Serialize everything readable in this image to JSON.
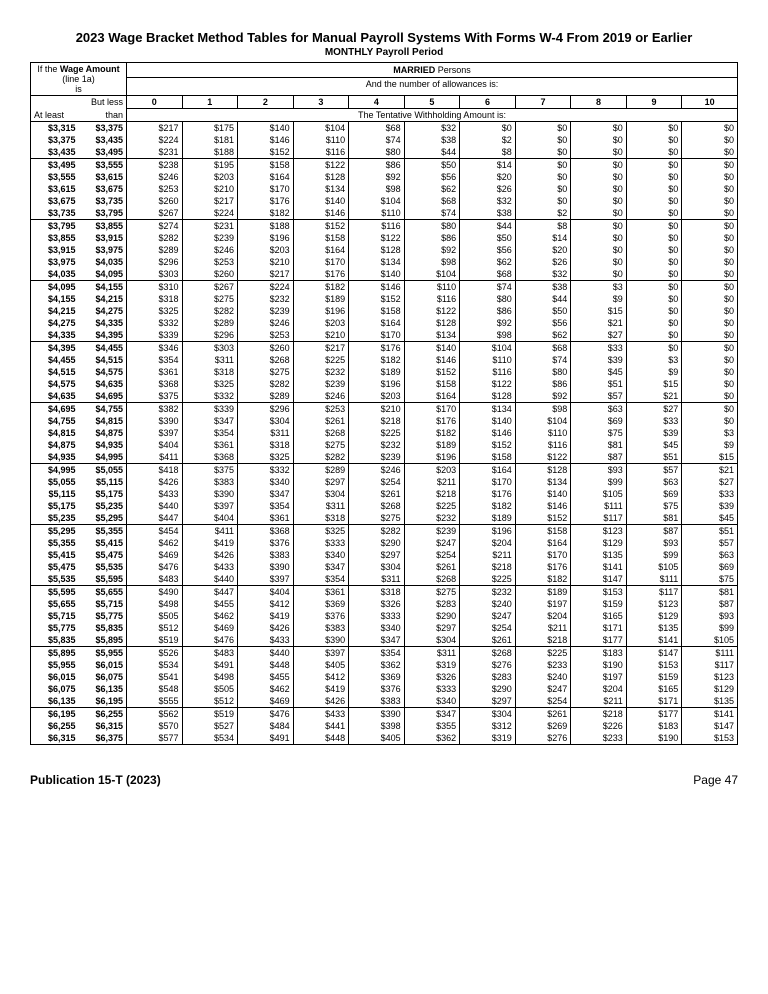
{
  "title": "2023 Wage Bracket Method Tables for Manual Payroll Systems With Forms W-4 From 2019 or Earlier",
  "subtitle": "MONTHLY Payroll Period",
  "wage_amount_label_l1": "If the Wage Amount",
  "wage_amount_label_l2": "(line 1a)",
  "wage_amount_label_l3": "is",
  "married_label": "MARRIED Persons",
  "allowances_label": "And the number of allowances is:",
  "at_least_label": "At least",
  "but_less_label_l1": "But less",
  "but_less_label_l2": "than",
  "tentative_label": "The Tentative Withholding Amount is:",
  "allowance_headers": [
    "0",
    "1",
    "2",
    "3",
    "4",
    "5",
    "6",
    "7",
    "8",
    "9",
    "10"
  ],
  "footer_left": "Publication 15-T (2023)",
  "footer_right": "Page 47",
  "groups": [
    [
      [
        "$3,315",
        "$3,375",
        "$217",
        "$175",
        "$140",
        "$104",
        "$68",
        "$32",
        "$0",
        "$0",
        "$0",
        "$0",
        "$0"
      ],
      [
        "$3,375",
        "$3,435",
        "$224",
        "$181",
        "$146",
        "$110",
        "$74",
        "$38",
        "$2",
        "$0",
        "$0",
        "$0",
        "$0"
      ],
      [
        "$3,435",
        "$3,495",
        "$231",
        "$188",
        "$152",
        "$116",
        "$80",
        "$44",
        "$8",
        "$0",
        "$0",
        "$0",
        "$0"
      ]
    ],
    [
      [
        "$3,495",
        "$3,555",
        "$238",
        "$195",
        "$158",
        "$122",
        "$86",
        "$50",
        "$14",
        "$0",
        "$0",
        "$0",
        "$0"
      ],
      [
        "$3,555",
        "$3,615",
        "$246",
        "$203",
        "$164",
        "$128",
        "$92",
        "$56",
        "$20",
        "$0",
        "$0",
        "$0",
        "$0"
      ],
      [
        "$3,615",
        "$3,675",
        "$253",
        "$210",
        "$170",
        "$134",
        "$98",
        "$62",
        "$26",
        "$0",
        "$0",
        "$0",
        "$0"
      ],
      [
        "$3,675",
        "$3,735",
        "$260",
        "$217",
        "$176",
        "$140",
        "$104",
        "$68",
        "$32",
        "$0",
        "$0",
        "$0",
        "$0"
      ],
      [
        "$3,735",
        "$3,795",
        "$267",
        "$224",
        "$182",
        "$146",
        "$110",
        "$74",
        "$38",
        "$2",
        "$0",
        "$0",
        "$0"
      ]
    ],
    [
      [
        "$3,795",
        "$3,855",
        "$274",
        "$231",
        "$188",
        "$152",
        "$116",
        "$80",
        "$44",
        "$8",
        "$0",
        "$0",
        "$0"
      ],
      [
        "$3,855",
        "$3,915",
        "$282",
        "$239",
        "$196",
        "$158",
        "$122",
        "$86",
        "$50",
        "$14",
        "$0",
        "$0",
        "$0"
      ],
      [
        "$3,915",
        "$3,975",
        "$289",
        "$246",
        "$203",
        "$164",
        "$128",
        "$92",
        "$56",
        "$20",
        "$0",
        "$0",
        "$0"
      ],
      [
        "$3,975",
        "$4,035",
        "$296",
        "$253",
        "$210",
        "$170",
        "$134",
        "$98",
        "$62",
        "$26",
        "$0",
        "$0",
        "$0"
      ],
      [
        "$4,035",
        "$4,095",
        "$303",
        "$260",
        "$217",
        "$176",
        "$140",
        "$104",
        "$68",
        "$32",
        "$0",
        "$0",
        "$0"
      ]
    ],
    [
      [
        "$4,095",
        "$4,155",
        "$310",
        "$267",
        "$224",
        "$182",
        "$146",
        "$110",
        "$74",
        "$38",
        "$3",
        "$0",
        "$0"
      ],
      [
        "$4,155",
        "$4,215",
        "$318",
        "$275",
        "$232",
        "$189",
        "$152",
        "$116",
        "$80",
        "$44",
        "$9",
        "$0",
        "$0"
      ],
      [
        "$4,215",
        "$4,275",
        "$325",
        "$282",
        "$239",
        "$196",
        "$158",
        "$122",
        "$86",
        "$50",
        "$15",
        "$0",
        "$0"
      ],
      [
        "$4,275",
        "$4,335",
        "$332",
        "$289",
        "$246",
        "$203",
        "$164",
        "$128",
        "$92",
        "$56",
        "$21",
        "$0",
        "$0"
      ],
      [
        "$4,335",
        "$4,395",
        "$339",
        "$296",
        "$253",
        "$210",
        "$170",
        "$134",
        "$98",
        "$62",
        "$27",
        "$0",
        "$0"
      ]
    ],
    [
      [
        "$4,395",
        "$4,455",
        "$346",
        "$303",
        "$260",
        "$217",
        "$176",
        "$140",
        "$104",
        "$68",
        "$33",
        "$0",
        "$0"
      ],
      [
        "$4,455",
        "$4,515",
        "$354",
        "$311",
        "$268",
        "$225",
        "$182",
        "$146",
        "$110",
        "$74",
        "$39",
        "$3",
        "$0"
      ],
      [
        "$4,515",
        "$4,575",
        "$361",
        "$318",
        "$275",
        "$232",
        "$189",
        "$152",
        "$116",
        "$80",
        "$45",
        "$9",
        "$0"
      ],
      [
        "$4,575",
        "$4,635",
        "$368",
        "$325",
        "$282",
        "$239",
        "$196",
        "$158",
        "$122",
        "$86",
        "$51",
        "$15",
        "$0"
      ],
      [
        "$4,635",
        "$4,695",
        "$375",
        "$332",
        "$289",
        "$246",
        "$203",
        "$164",
        "$128",
        "$92",
        "$57",
        "$21",
        "$0"
      ]
    ],
    [
      [
        "$4,695",
        "$4,755",
        "$382",
        "$339",
        "$296",
        "$253",
        "$210",
        "$170",
        "$134",
        "$98",
        "$63",
        "$27",
        "$0"
      ],
      [
        "$4,755",
        "$4,815",
        "$390",
        "$347",
        "$304",
        "$261",
        "$218",
        "$176",
        "$140",
        "$104",
        "$69",
        "$33",
        "$0"
      ],
      [
        "$4,815",
        "$4,875",
        "$397",
        "$354",
        "$311",
        "$268",
        "$225",
        "$182",
        "$146",
        "$110",
        "$75",
        "$39",
        "$3"
      ],
      [
        "$4,875",
        "$4,935",
        "$404",
        "$361",
        "$318",
        "$275",
        "$232",
        "$189",
        "$152",
        "$116",
        "$81",
        "$45",
        "$9"
      ],
      [
        "$4,935",
        "$4,995",
        "$411",
        "$368",
        "$325",
        "$282",
        "$239",
        "$196",
        "$158",
        "$122",
        "$87",
        "$51",
        "$15"
      ]
    ],
    [
      [
        "$4,995",
        "$5,055",
        "$418",
        "$375",
        "$332",
        "$289",
        "$246",
        "$203",
        "$164",
        "$128",
        "$93",
        "$57",
        "$21"
      ],
      [
        "$5,055",
        "$5,115",
        "$426",
        "$383",
        "$340",
        "$297",
        "$254",
        "$211",
        "$170",
        "$134",
        "$99",
        "$63",
        "$27"
      ],
      [
        "$5,115",
        "$5,175",
        "$433",
        "$390",
        "$347",
        "$304",
        "$261",
        "$218",
        "$176",
        "$140",
        "$105",
        "$69",
        "$33"
      ],
      [
        "$5,175",
        "$5,235",
        "$440",
        "$397",
        "$354",
        "$311",
        "$268",
        "$225",
        "$182",
        "$146",
        "$111",
        "$75",
        "$39"
      ],
      [
        "$5,235",
        "$5,295",
        "$447",
        "$404",
        "$361",
        "$318",
        "$275",
        "$232",
        "$189",
        "$152",
        "$117",
        "$81",
        "$45"
      ]
    ],
    [
      [
        "$5,295",
        "$5,355",
        "$454",
        "$411",
        "$368",
        "$325",
        "$282",
        "$239",
        "$196",
        "$158",
        "$123",
        "$87",
        "$51"
      ],
      [
        "$5,355",
        "$5,415",
        "$462",
        "$419",
        "$376",
        "$333",
        "$290",
        "$247",
        "$204",
        "$164",
        "$129",
        "$93",
        "$57"
      ],
      [
        "$5,415",
        "$5,475",
        "$469",
        "$426",
        "$383",
        "$340",
        "$297",
        "$254",
        "$211",
        "$170",
        "$135",
        "$99",
        "$63"
      ],
      [
        "$5,475",
        "$5,535",
        "$476",
        "$433",
        "$390",
        "$347",
        "$304",
        "$261",
        "$218",
        "$176",
        "$141",
        "$105",
        "$69"
      ],
      [
        "$5,535",
        "$5,595",
        "$483",
        "$440",
        "$397",
        "$354",
        "$311",
        "$268",
        "$225",
        "$182",
        "$147",
        "$111",
        "$75"
      ]
    ],
    [
      [
        "$5,595",
        "$5,655",
        "$490",
        "$447",
        "$404",
        "$361",
        "$318",
        "$275",
        "$232",
        "$189",
        "$153",
        "$117",
        "$81"
      ],
      [
        "$5,655",
        "$5,715",
        "$498",
        "$455",
        "$412",
        "$369",
        "$326",
        "$283",
        "$240",
        "$197",
        "$159",
        "$123",
        "$87"
      ],
      [
        "$5,715",
        "$5,775",
        "$505",
        "$462",
        "$419",
        "$376",
        "$333",
        "$290",
        "$247",
        "$204",
        "$165",
        "$129",
        "$93"
      ],
      [
        "$5,775",
        "$5,835",
        "$512",
        "$469",
        "$426",
        "$383",
        "$340",
        "$297",
        "$254",
        "$211",
        "$171",
        "$135",
        "$99"
      ],
      [
        "$5,835",
        "$5,895",
        "$519",
        "$476",
        "$433",
        "$390",
        "$347",
        "$304",
        "$261",
        "$218",
        "$177",
        "$141",
        "$105"
      ]
    ],
    [
      [
        "$5,895",
        "$5,955",
        "$526",
        "$483",
        "$440",
        "$397",
        "$354",
        "$311",
        "$268",
        "$225",
        "$183",
        "$147",
        "$111"
      ],
      [
        "$5,955",
        "$6,015",
        "$534",
        "$491",
        "$448",
        "$405",
        "$362",
        "$319",
        "$276",
        "$233",
        "$190",
        "$153",
        "$117"
      ],
      [
        "$6,015",
        "$6,075",
        "$541",
        "$498",
        "$455",
        "$412",
        "$369",
        "$326",
        "$283",
        "$240",
        "$197",
        "$159",
        "$123"
      ],
      [
        "$6,075",
        "$6,135",
        "$548",
        "$505",
        "$462",
        "$419",
        "$376",
        "$333",
        "$290",
        "$247",
        "$204",
        "$165",
        "$129"
      ],
      [
        "$6,135",
        "$6,195",
        "$555",
        "$512",
        "$469",
        "$426",
        "$383",
        "$340",
        "$297",
        "$254",
        "$211",
        "$171",
        "$135"
      ]
    ],
    [
      [
        "$6,195",
        "$6,255",
        "$562",
        "$519",
        "$476",
        "$433",
        "$390",
        "$347",
        "$304",
        "$261",
        "$218",
        "$177",
        "$141"
      ],
      [
        "$6,255",
        "$6,315",
        "$570",
        "$527",
        "$484",
        "$441",
        "$398",
        "$355",
        "$312",
        "$269",
        "$226",
        "$183",
        "$147"
      ],
      [
        "$6,315",
        "$6,375",
        "$577",
        "$534",
        "$491",
        "$448",
        "$405",
        "$362",
        "$319",
        "$276",
        "$233",
        "$190",
        "$153"
      ]
    ]
  ]
}
